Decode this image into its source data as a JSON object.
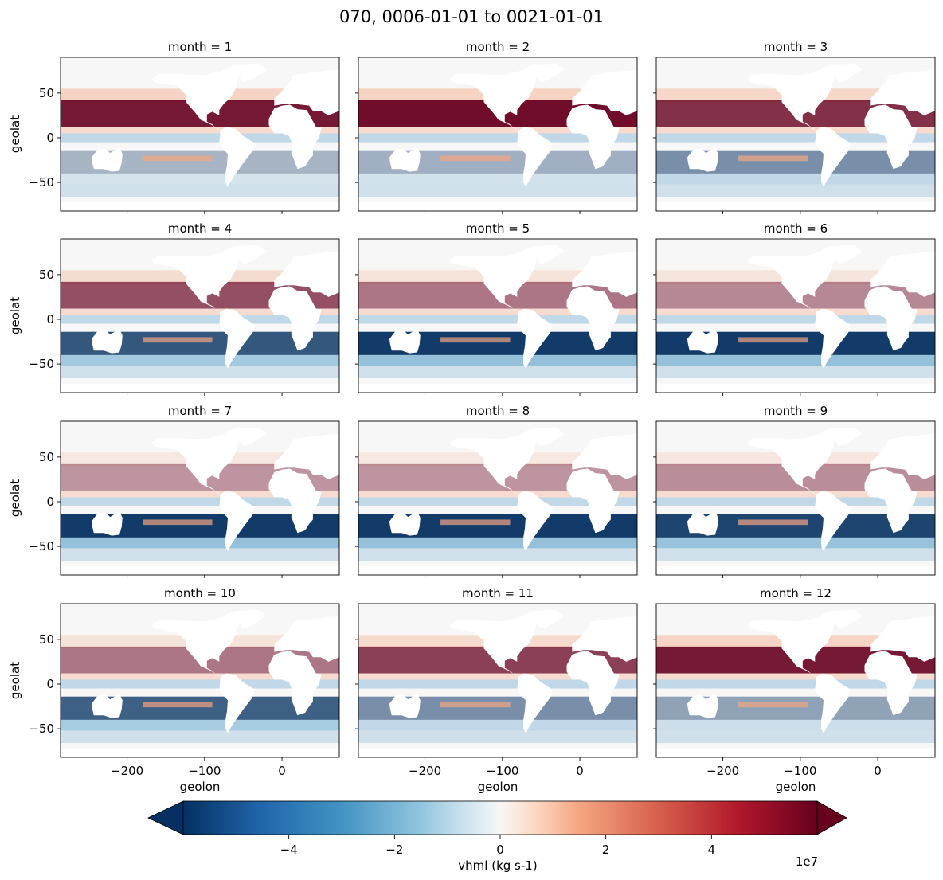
{
  "chart_data": {
    "type": "heatmap",
    "title": "070, 0006-01-01 to 0021-01-01",
    "variable": "vhml",
    "xlabel": "geolon",
    "ylabel": "geolat",
    "xlim": [
      -286,
      74
    ],
    "ylim": [
      -82,
      90
    ],
    "xticks": [
      -200,
      -100,
      0
    ],
    "xtick_labels": [
      "−200",
      "−100",
      "0"
    ],
    "yticks": [
      50,
      0,
      -50
    ],
    "ytick_labels": [
      "50",
      "0",
      "−50"
    ],
    "panels": [
      {
        "title": "month = 1",
        "north": 0.95,
        "south": 0.35
      },
      {
        "title": "month = 2",
        "north": 1.0,
        "south": 0.38
      },
      {
        "title": "month = 3",
        "north": 0.85,
        "south": 0.55
      },
      {
        "title": "month = 4",
        "north": 0.72,
        "south": 0.85
      },
      {
        "title": "month = 5",
        "north": 0.55,
        "south": 1.0
      },
      {
        "title": "month = 6",
        "north": 0.48,
        "south": 1.0
      },
      {
        "title": "month = 7",
        "north": 0.42,
        "south": 1.0
      },
      {
        "title": "month = 8",
        "north": 0.42,
        "south": 1.0
      },
      {
        "title": "month = 9",
        "north": 0.45,
        "south": 0.95
      },
      {
        "title": "month = 10",
        "north": 0.55,
        "south": 0.8
      },
      {
        "title": "month = 11",
        "north": 0.78,
        "south": 0.55
      },
      {
        "title": "month = 12",
        "north": 0.95,
        "south": 0.45
      }
    ],
    "colorbar": {
      "label": "vhml (kg s-1)",
      "vmin": -6,
      "vmax": 6,
      "ticks": [
        -4,
        -2,
        0,
        2,
        4
      ],
      "tick_labels": [
        "−4",
        "−2",
        "0",
        "2",
        "4"
      ],
      "offset_label": "1e7",
      "colormap": "RdBu_r",
      "extend": "both"
    },
    "colors": {
      "neg_max": "#053061",
      "neg_mid": "#4393c3",
      "neutral": "#f7f7f7",
      "pos_mid": "#f4a582",
      "pos_max": "#67001f"
    }
  }
}
